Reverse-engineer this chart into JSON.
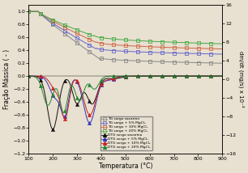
{
  "title": "",
  "xlabel": "Temperatura (°C)",
  "ylabel_left": "Fração Mássica ( - )",
  "ylabel_right": "dm/dt (mg/s) x 10⁻³",
  "xlim": [
    100,
    900
  ],
  "ylim_left": [
    -1.2,
    1.1
  ],
  "ylim_right": [
    -16,
    16
  ],
  "yticks_left": [
    -1.2,
    -1.0,
    -0.8,
    -0.6,
    -0.4,
    -0.2,
    0.0,
    0.2,
    0.4,
    0.6,
    0.8,
    1.0
  ],
  "yticks_right": [
    -16,
    -12,
    -8,
    -4,
    0,
    4,
    8,
    12,
    16
  ],
  "xticks": [
    100,
    200,
    300,
    400,
    500,
    600,
    700,
    800,
    900
  ],
  "legend_entries": [
    "TG sorgo sacarino",
    "TG sorgo + 5% MgCl₂",
    "TG sorgo + 10% MgCl₂",
    "TG sorgo + 20% MgCl₂",
    "DTG sorgo sacarino",
    "DTG sorgo + 5% MgCl₂",
    "DTG sorgo + 10% MgCl₂",
    "DTG sorgo + 20% MgCl₂"
  ],
  "tg_color_sacarina": "#888888",
  "tg_color_5": "#6666cc",
  "tg_color_10": "#cc6644",
  "tg_color_20": "#44aa44",
  "dtg_color_sacarina": "#111111",
  "dtg_color_5": "#3333bb",
  "dtg_color_10": "#cc2222",
  "dtg_color_20": "#228833",
  "background_color": "#e8e0d0"
}
